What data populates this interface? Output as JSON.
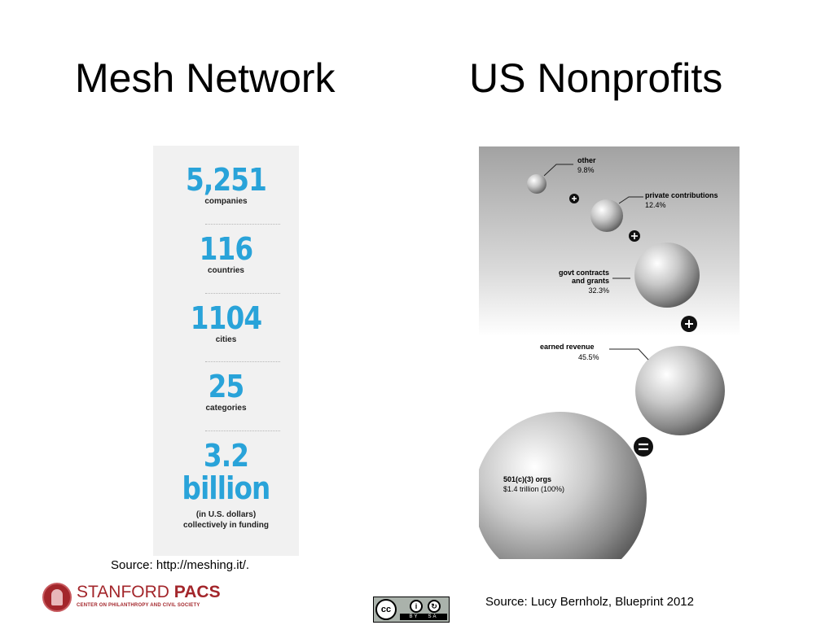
{
  "titles": {
    "left": "Mesh Network",
    "right": "US Nonprofits"
  },
  "mesh": {
    "stats": [
      {
        "value": "5,251",
        "label": "companies"
      },
      {
        "value": "116",
        "label": "countries"
      },
      {
        "value": "1104",
        "label": "cities"
      },
      {
        "value": "25",
        "label": "categories"
      }
    ],
    "funding": {
      "value_line1": "3.2",
      "value_line2": "billion",
      "label_line1": "(in U.S. dollars)",
      "label_line2": "collectively in funding"
    },
    "accent_color": "#29a3d9",
    "source": "Source: http://meshing.it/."
  },
  "nonprofits": {
    "components": [
      {
        "name": "other",
        "value": "9.8%"
      },
      {
        "name": "private contributions",
        "value": "12.4%"
      },
      {
        "name_line1": "govt contracts",
        "name_line2": "and grants",
        "value": "32.3%"
      },
      {
        "name": "earned revenue",
        "value": "45.5%"
      }
    ],
    "total": {
      "name": "501(c)(3) orgs",
      "value": "$1.4 trillion (100%)"
    },
    "operators": [
      "+",
      "+",
      "+",
      "="
    ],
    "source": "Source: Lucy Bernholz, Blueprint 2012"
  },
  "footer": {
    "stanford_name_regular": "STANFORD",
    "stanford_name_bold": "PACS",
    "stanford_subtitle": "CENTER ON PHILANTHROPY AND CIVIL SOCIETY",
    "brand_color": "#a3262b",
    "cc_main": "cc",
    "cc_by": "BY",
    "cc_sa": "SA"
  }
}
